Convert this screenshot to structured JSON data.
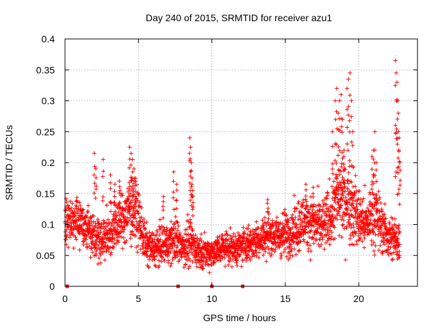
{
  "chart_data": {
    "type": "scatter",
    "title": "Day 240 of 2015, SRMTID for receiver azu1",
    "xlabel": "GPS time / hours",
    "ylabel": "SRMTID / TECUs",
    "xlim": [
      0,
      24
    ],
    "ylim": [
      0,
      0.4
    ],
    "xticks": [
      0,
      5,
      10,
      15,
      20
    ],
    "xtick_labels": [
      "0",
      "5",
      "10",
      "15",
      "20"
    ],
    "yticks": [
      0,
      0.05,
      0.1,
      0.15,
      0.2,
      0.25,
      0.3,
      0.35,
      0.4
    ],
    "ytick_labels": [
      "0",
      "0.05",
      "0.1",
      "0.15",
      "0.2",
      "0.25",
      "0.3",
      "0.35",
      "0.4"
    ],
    "grid": true,
    "marker": "plus",
    "color": "#ff0000",
    "zero_markers_x": [
      0.15,
      7.7,
      10.0,
      12.1
    ],
    "envelope": [
      [
        0.0,
        0.095,
        0.035
      ],
      [
        0.5,
        0.11,
        0.03
      ],
      [
        1.0,
        0.105,
        0.03
      ],
      [
        1.5,
        0.095,
        0.03
      ],
      [
        2.0,
        0.085,
        0.03
      ],
      [
        2.5,
        0.075,
        0.03
      ],
      [
        3.0,
        0.085,
        0.03
      ],
      [
        3.5,
        0.1,
        0.035
      ],
      [
        4.0,
        0.11,
        0.035
      ],
      [
        4.5,
        0.13,
        0.045
      ],
      [
        5.0,
        0.11,
        0.035
      ],
      [
        5.5,
        0.065,
        0.025
      ],
      [
        6.0,
        0.06,
        0.022
      ],
      [
        6.5,
        0.065,
        0.025
      ],
      [
        7.0,
        0.07,
        0.025
      ],
      [
        7.5,
        0.075,
        0.03
      ],
      [
        8.0,
        0.065,
        0.025
      ],
      [
        8.5,
        0.07,
        0.03
      ],
      [
        9.0,
        0.06,
        0.022
      ],
      [
        9.5,
        0.055,
        0.02
      ],
      [
        10.0,
        0.055,
        0.02
      ],
      [
        10.5,
        0.06,
        0.02
      ],
      [
        11.0,
        0.065,
        0.022
      ],
      [
        11.5,
        0.06,
        0.02
      ],
      [
        12.0,
        0.065,
        0.022
      ],
      [
        12.5,
        0.07,
        0.025
      ],
      [
        13.0,
        0.075,
        0.025
      ],
      [
        13.5,
        0.08,
        0.025
      ],
      [
        14.0,
        0.085,
        0.025
      ],
      [
        14.5,
        0.08,
        0.025
      ],
      [
        15.0,
        0.085,
        0.03
      ],
      [
        15.5,
        0.09,
        0.03
      ],
      [
        16.0,
        0.1,
        0.035
      ],
      [
        16.5,
        0.105,
        0.035
      ],
      [
        17.0,
        0.1,
        0.035
      ],
      [
        17.5,
        0.095,
        0.035
      ],
      [
        18.0,
        0.11,
        0.04
      ],
      [
        18.5,
        0.14,
        0.05
      ],
      [
        19.0,
        0.14,
        0.05
      ],
      [
        19.5,
        0.13,
        0.05
      ],
      [
        20.0,
        0.11,
        0.04
      ],
      [
        20.5,
        0.1,
        0.035
      ],
      [
        21.0,
        0.12,
        0.045
      ],
      [
        21.5,
        0.1,
        0.035
      ],
      [
        22.0,
        0.08,
        0.03
      ],
      [
        22.5,
        0.075,
        0.03
      ]
    ],
    "spikes": [
      [
        2.0,
        0.215
      ],
      [
        2.1,
        0.19
      ],
      [
        2.6,
        0.205
      ],
      [
        3.1,
        0.18
      ],
      [
        3.4,
        0.165
      ],
      [
        3.7,
        0.17
      ],
      [
        4.4,
        0.225
      ],
      [
        4.5,
        0.215
      ],
      [
        4.6,
        0.205
      ],
      [
        4.7,
        0.19
      ],
      [
        4.8,
        0.175
      ],
      [
        6.7,
        0.145
      ],
      [
        7.4,
        0.185
      ],
      [
        7.6,
        0.165
      ],
      [
        8.5,
        0.24
      ],
      [
        8.55,
        0.225
      ],
      [
        8.6,
        0.2
      ],
      [
        8.65,
        0.175
      ],
      [
        8.7,
        0.155
      ],
      [
        13.8,
        0.14
      ],
      [
        16.4,
        0.165
      ],
      [
        16.9,
        0.16
      ],
      [
        18.2,
        0.25
      ],
      [
        18.4,
        0.3
      ],
      [
        18.5,
        0.32
      ],
      [
        18.6,
        0.28
      ],
      [
        18.7,
        0.3
      ],
      [
        18.8,
        0.31
      ],
      [
        18.9,
        0.27
      ],
      [
        19.0,
        0.22
      ],
      [
        19.2,
        0.32
      ],
      [
        19.3,
        0.335
      ],
      [
        19.4,
        0.345
      ],
      [
        19.5,
        0.3
      ],
      [
        19.6,
        0.25
      ],
      [
        20.9,
        0.21
      ],
      [
        21.0,
        0.22
      ],
      [
        21.1,
        0.25
      ],
      [
        21.2,
        0.2
      ],
      [
        22.5,
        0.365
      ],
      [
        22.55,
        0.345
      ],
      [
        22.6,
        0.33
      ],
      [
        22.65,
        0.3
      ],
      [
        22.7,
        0.28
      ],
      [
        22.75,
        0.24
      ],
      [
        22.8,
        0.2
      ]
    ],
    "sample_count": 2600,
    "x_max_data": 22.8
  }
}
